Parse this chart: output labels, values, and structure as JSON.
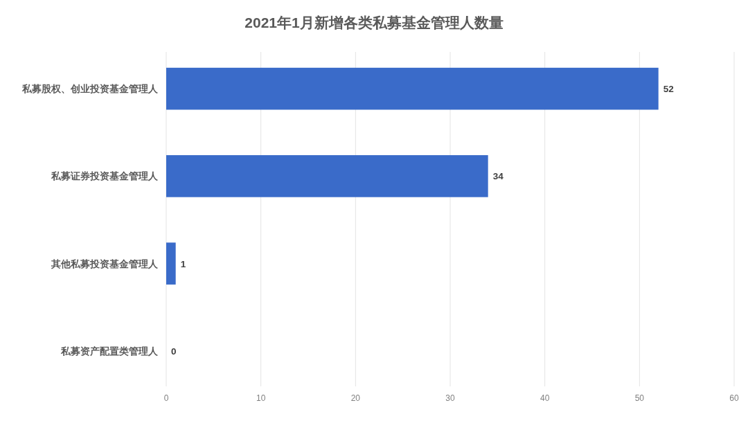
{
  "chart_data": {
    "type": "bar",
    "orientation": "horizontal",
    "title": "2021年1月新增各类私募基金管理人数量",
    "categories": [
      "私募股权、创业投资基金管理人",
      "私募证券投资基金管理人",
      "其他私募投资基金管理人",
      "私募资产配置类管理人"
    ],
    "values": [
      52,
      34,
      1,
      0
    ],
    "color": "#3a6bc9",
    "xlim": [
      0,
      60
    ],
    "xticks": [
      0,
      10,
      20,
      30,
      40,
      50,
      60
    ],
    "grid": "x",
    "data_labels": true
  }
}
